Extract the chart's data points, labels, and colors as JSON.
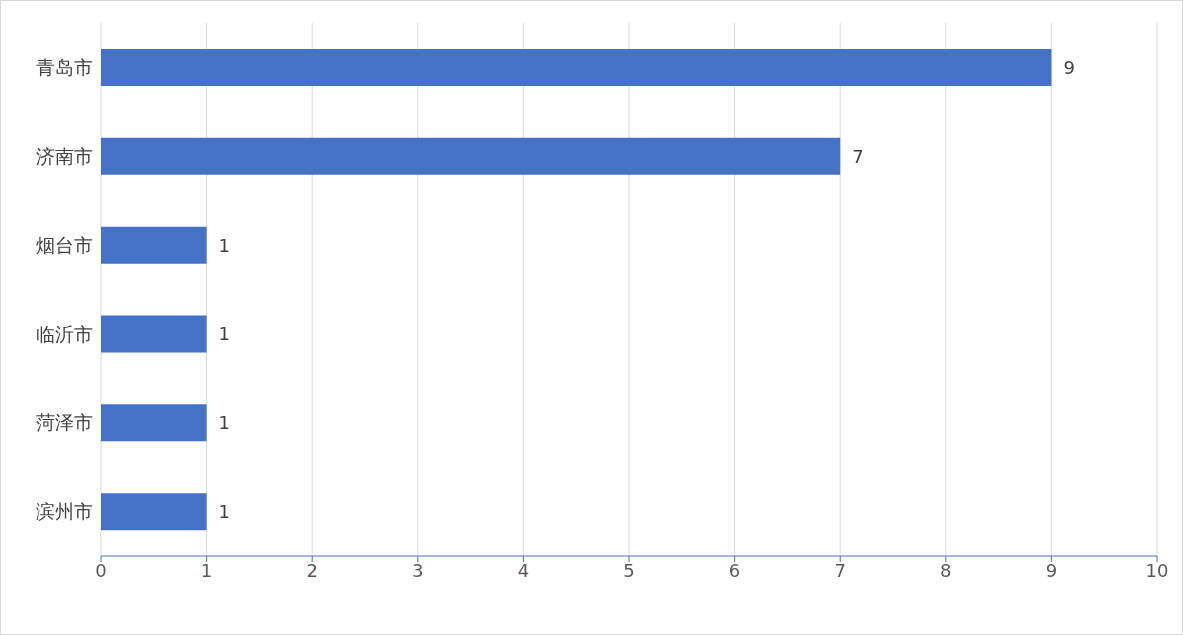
{
  "chart_data": {
    "type": "bar",
    "orientation": "horizontal",
    "categories": [
      "青岛市",
      "济南市",
      "烟台市",
      "临沂市",
      "菏泽市",
      "滨州市"
    ],
    "values": [
      9,
      7,
      1,
      1,
      1,
      1
    ],
    "color": "#4472c4",
    "xlim": [
      0,
      10
    ],
    "xticks": [
      0,
      1,
      2,
      3,
      4,
      5,
      6,
      7,
      8,
      9,
      10
    ],
    "grid": "x",
    "data_labels": true
  }
}
